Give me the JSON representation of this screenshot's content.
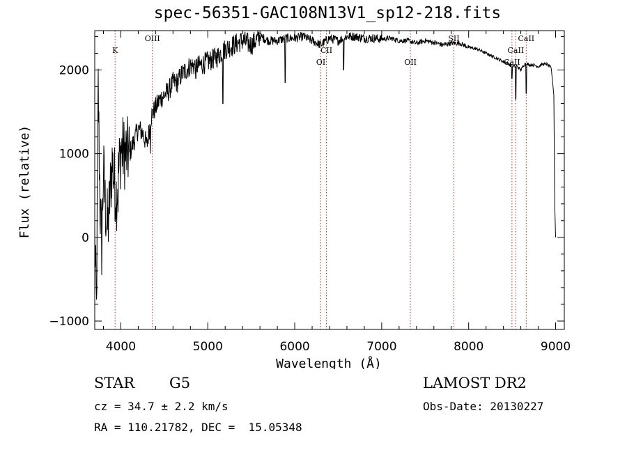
{
  "chart_data": {
    "type": "line",
    "title": "spec-56351-GAC108N13V1_sp12-218.fits",
    "xlabel": "Wavelength (Å)",
    "ylabel": "Flux (relative)",
    "xlim": [
      3700,
      9100
    ],
    "ylim": [
      -1100,
      2470
    ],
    "x_ticks": [
      4000,
      5000,
      6000,
      7000,
      8000,
      9000
    ],
    "y_ticks": [
      -1000,
      0,
      1000,
      2000
    ],
    "x_tick_labels": [
      "4000",
      "5000",
      "6000",
      "7000",
      "8000",
      "9000"
    ],
    "y_tick_labels": [
      "−1000",
      "0",
      "1000",
      "2000"
    ],
    "grid": false,
    "line_color": "#000000",
    "marker_color": "#b03030",
    "series": [
      {
        "x": [
          3700,
          3720,
          3740,
          3760,
          3780,
          3800,
          3820,
          3850,
          3900,
          3950,
          4000,
          4050,
          4100,
          4150,
          4200,
          4250,
          4300,
          4350,
          4400,
          4450,
          4500,
          4550,
          4600,
          4650,
          4700,
          4800,
          4900,
          5000,
          5100,
          5200,
          5300,
          5400,
          5500,
          5600,
          5700,
          5800,
          5900,
          6000,
          6100,
          6200,
          6300,
          6400,
          6500,
          6600,
          6700,
          6800,
          6900,
          7000,
          7100,
          7200,
          7300,
          7400,
          7500,
          7600,
          7700,
          7800,
          7900,
          8000,
          8100,
          8200,
          8300,
          8400,
          8450,
          8500,
          8550,
          8600,
          8650,
          8700,
          8750,
          8800,
          8850,
          8900,
          8950,
          8980,
          8990,
          9000
        ],
        "y": [
          0,
          -900,
          1800,
          400,
          -100,
          800,
          400,
          100,
          900,
          500,
          1050,
          1000,
          1000,
          1150,
          1300,
          1250,
          1100,
          1450,
          1550,
          1650,
          1700,
          1750,
          1850,
          1850,
          1950,
          2050,
          2050,
          2100,
          2150,
          2250,
          2300,
          2350,
          2300,
          2400,
          2350,
          2350,
          2380,
          2380,
          2400,
          2350,
          2300,
          2380,
          2350,
          2400,
          2400,
          2380,
          2380,
          2370,
          2380,
          2350,
          2350,
          2320,
          2350,
          2330,
          2300,
          2320,
          2320,
          2270,
          2250,
          2200,
          2150,
          2100,
          2080,
          2040,
          2050,
          2000,
          2080,
          2060,
          2060,
          2040,
          2070,
          2070,
          2020,
          1700,
          400,
          0
        ],
        "dips": [
          [
            3933,
            200
          ],
          [
            3968,
            300
          ],
          [
            4340,
            1000
          ],
          [
            4861,
            1900
          ],
          [
            5175,
            1600
          ],
          [
            5890,
            1850
          ],
          [
            6563,
            2000
          ],
          [
            8498,
            1900
          ],
          [
            8542,
            1650
          ],
          [
            8662,
            1720
          ]
        ]
      }
    ],
    "line_markers": [
      {
        "label": "K",
        "x": 3934
      },
      {
        "label": "OIII",
        "x": 4363
      },
      {
        "label": "OI",
        "x": 6300
      },
      {
        "label": "CII",
        "x": 6364
      },
      {
        "label": "OII",
        "x": 7330
      },
      {
        "label": "SII",
        "x": 7830
      },
      {
        "label": "CaII",
        "x": 8498
      },
      {
        "label": "CaII",
        "x": 8542
      },
      {
        "label": "CaII",
        "x": 8662
      }
    ]
  },
  "info": {
    "object_class": "STAR",
    "subclass": "G5",
    "survey": "LAMOST DR2",
    "redshift": "cz = 34.7 ± 2.2 km/s",
    "obs_date": "Obs-Date: 20130227",
    "coords": "RA = 110.21782, DEC =  15.05348"
  }
}
